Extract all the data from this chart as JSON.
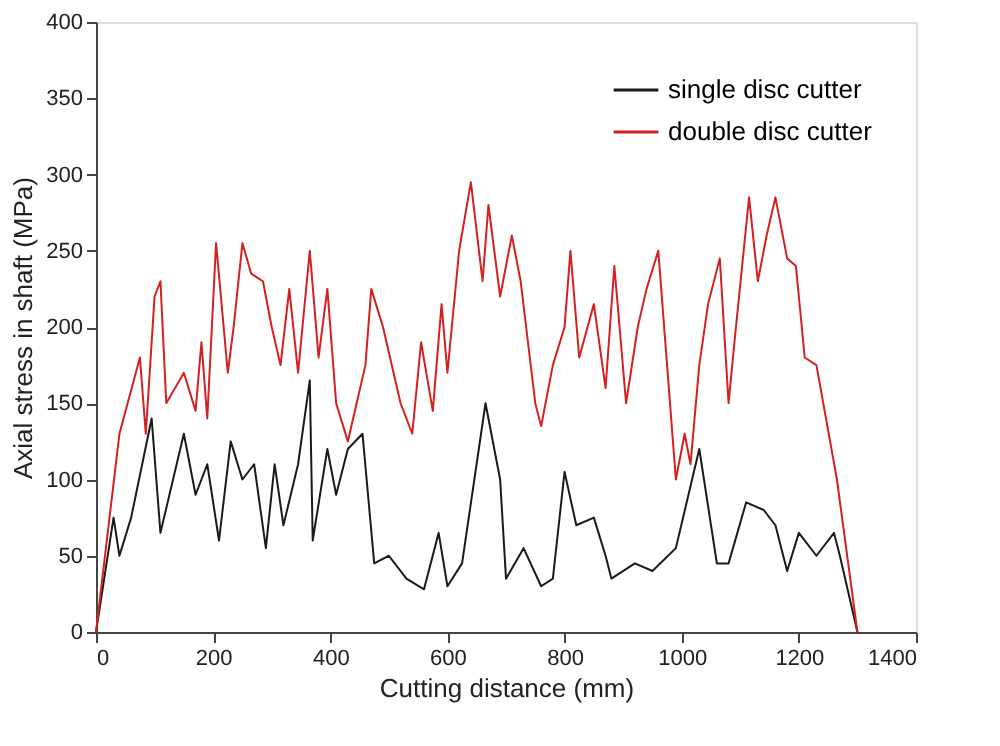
{
  "chart_data": {
    "type": "line",
    "xlabel": "Cutting distance (mm)",
    "ylabel": "Axial stress in shaft (MPa)",
    "xlim": [
      0,
      1400
    ],
    "xticks": [
      0,
      200,
      400,
      600,
      800,
      1000,
      1200,
      1400
    ],
    "ylim": [
      0,
      400
    ],
    "yticks": [
      0,
      50,
      100,
      150,
      200,
      250,
      300,
      350,
      400
    ],
    "grid": false,
    "legend": "top right",
    "marker": "none",
    "line_style": "solid",
    "series": [
      {
        "name": "single disc cutter",
        "color": "#1a1a1a",
        "x": [
          0,
          30,
          40,
          60,
          95,
          110,
          150,
          170,
          190,
          210,
          230,
          250,
          270,
          290,
          305,
          320,
          345,
          365,
          370,
          395,
          410,
          430,
          455,
          475,
          500,
          530,
          560,
          585,
          600,
          625,
          665,
          690,
          700,
          730,
          760,
          780,
          800,
          820,
          850,
          870,
          880,
          920,
          950,
          990,
          1030,
          1060,
          1080,
          1110,
          1140,
          1160,
          1180,
          1200,
          1230,
          1260,
          1270,
          1300
        ],
        "values": [
          0,
          75,
          50,
          75,
          140,
          65,
          130,
          90,
          110,
          60,
          125,
          100,
          110,
          55,
          110,
          70,
          110,
          165,
          60,
          120,
          90,
          120,
          130,
          45,
          50,
          35,
          28,
          65,
          30,
          45,
          150,
          100,
          35,
          55,
          30,
          35,
          105,
          70,
          75,
          50,
          35,
          45,
          40,
          55,
          120,
          45,
          45,
          85,
          80,
          70,
          40,
          65,
          50,
          65,
          50,
          0
        ]
      },
      {
        "name": "double disc cutter",
        "color": "#d62020",
        "x": [
          0,
          40,
          75,
          85,
          100,
          110,
          120,
          150,
          170,
          180,
          190,
          205,
          225,
          235,
          250,
          265,
          285,
          300,
          315,
          330,
          345,
          365,
          380,
          395,
          410,
          430,
          445,
          460,
          470,
          490,
          520,
          540,
          555,
          575,
          590,
          600,
          620,
          640,
          660,
          670,
          690,
          710,
          725,
          750,
          760,
          780,
          800,
          810,
          825,
          850,
          870,
          885,
          905,
          925,
          940,
          960,
          975,
          990,
          1005,
          1015,
          1030,
          1045,
          1065,
          1080,
          1090,
          1115,
          1130,
          1145,
          1160,
          1180,
          1195,
          1210,
          1230,
          1265,
          1300
        ],
        "values": [
          0,
          130,
          180,
          130,
          220,
          230,
          150,
          170,
          145,
          190,
          140,
          255,
          170,
          200,
          255,
          235,
          230,
          200,
          175,
          225,
          170,
          250,
          180,
          225,
          150,
          125,
          150,
          175,
          225,
          200,
          150,
          130,
          190,
          145,
          215,
          170,
          250,
          295,
          230,
          280,
          220,
          260,
          230,
          150,
          135,
          175,
          200,
          250,
          180,
          215,
          160,
          240,
          150,
          200,
          225,
          250,
          175,
          100,
          130,
          110,
          175,
          215,
          245,
          150,
          190,
          285,
          230,
          260,
          285,
          245,
          240,
          180,
          175,
          100,
          0
        ]
      }
    ]
  }
}
